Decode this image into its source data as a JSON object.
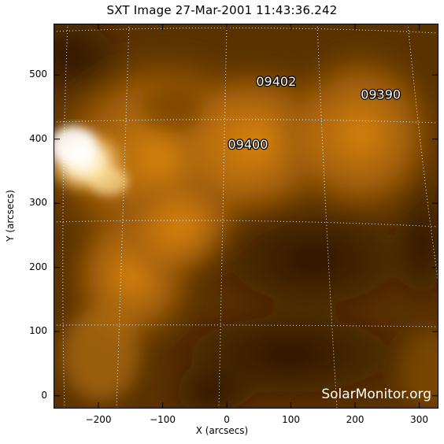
{
  "title": "SXT Image 27-Mar-2001 11:43:36.242",
  "xlabel": "X (arcsecs)",
  "ylabel": "Y (arcsecs)",
  "watermark": "SolarMonitor.org",
  "axes": {
    "xlim": [
      -270,
      330
    ],
    "ylim": [
      -20,
      580
    ],
    "xticks": [
      -200,
      -100,
      0,
      100,
      200,
      300
    ],
    "yticks": [
      0,
      100,
      200,
      300,
      400,
      500
    ]
  },
  "regions": [
    {
      "label": "09402",
      "x": 77,
      "y": 483
    },
    {
      "label": "09390",
      "x": 240,
      "y": 463
    },
    {
      "label": "09400",
      "x": 33,
      "y": 385
    }
  ],
  "colors": {
    "background": "#3a2000",
    "glow": "#f0a020",
    "bright": "#fff6e0",
    "grid": "#ffffff",
    "label_fill": "#ffffff",
    "label_stroke": "#000000"
  }
}
